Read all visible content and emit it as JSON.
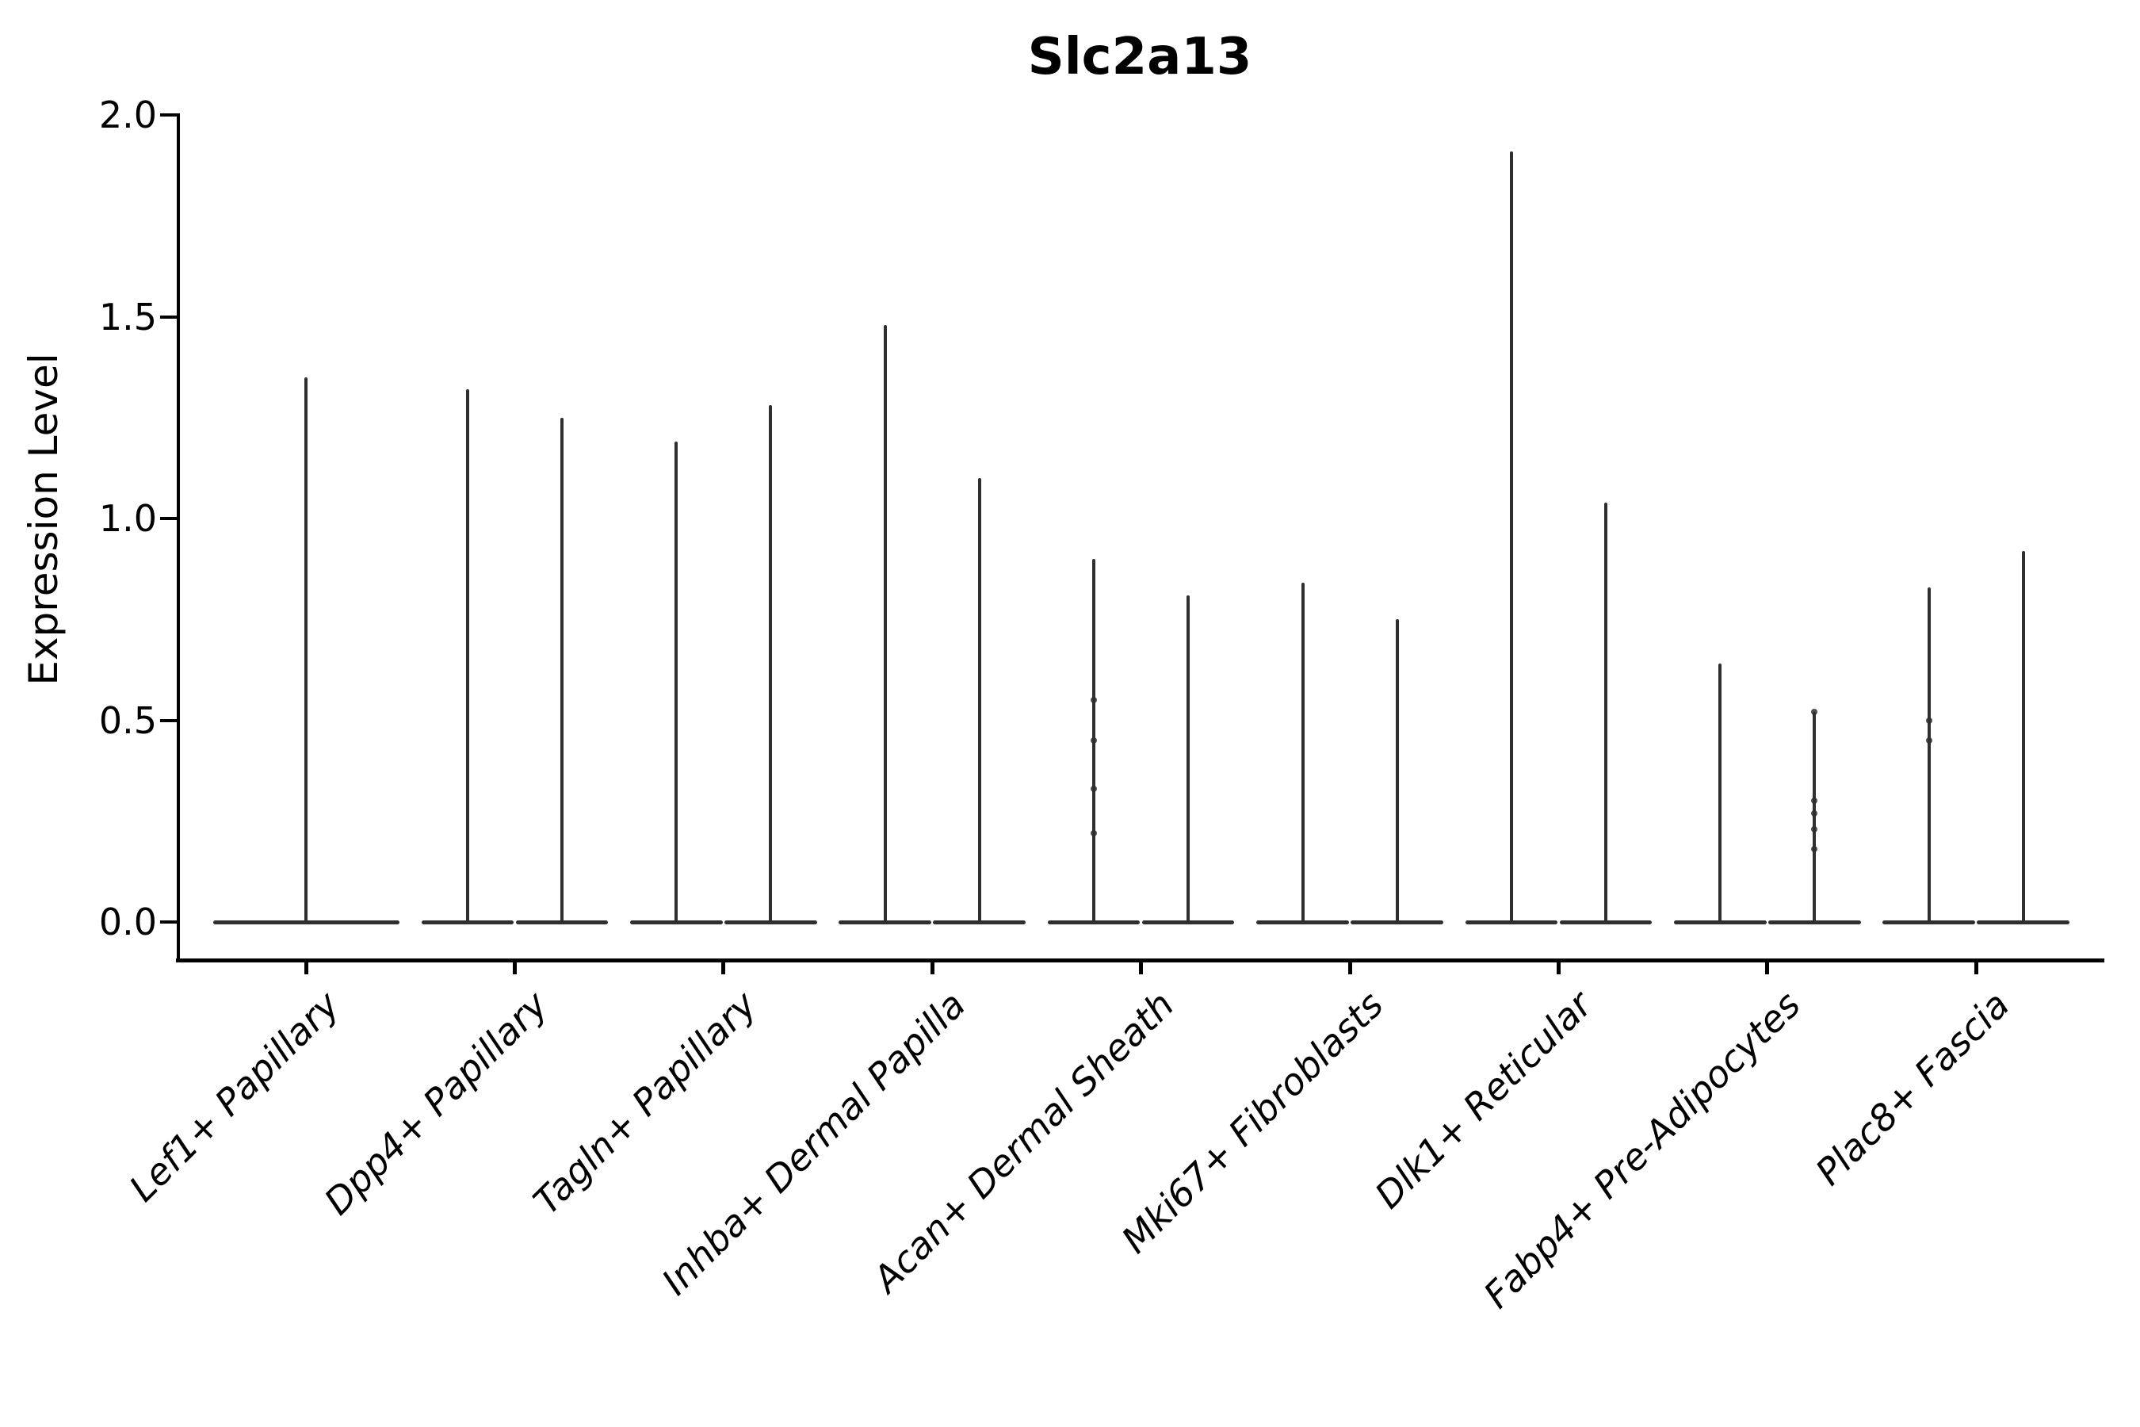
{
  "chart_data": {
    "type": "violin",
    "title": "Slc2a13",
    "ylabel": "Expression Level",
    "xlabel": "",
    "yticks": [
      0.0,
      0.5,
      1.0,
      1.5,
      2.0
    ],
    "ytick_labels": [
      "0.0",
      "0.5",
      "1.0",
      "1.5",
      "2.0"
    ],
    "ylim": [
      -0.09,
      2.0
    ],
    "grid": false,
    "legend": null,
    "categories": [
      "Lef1+ Papillary",
      "Dpp4+ Papillary",
      "Tagln+ Papillary",
      "Inhba+ Dermal Papilla",
      "Acan+ Dermal Sheath",
      "Mki67+ Fibroblasts",
      "Dlk1+ Reticular",
      "Fabp4+ Pre-Adipocytes",
      "Plac8+ Fascia"
    ],
    "series": [
      {
        "category": "Lef1+ Papillary",
        "violins": [
          {
            "max": 1.35,
            "points": []
          }
        ]
      },
      {
        "category": "Dpp4+ Papillary",
        "violins": [
          {
            "max": 1.32,
            "points": []
          },
          {
            "max": 1.25,
            "points": []
          }
        ]
      },
      {
        "category": "Tagln+ Papillary",
        "violins": [
          {
            "max": 1.19,
            "points": []
          },
          {
            "max": 1.28,
            "points": []
          }
        ]
      },
      {
        "category": "Inhba+ Dermal Papilla",
        "violins": [
          {
            "max": 1.48,
            "points": []
          },
          {
            "max": 1.1,
            "points": []
          }
        ]
      },
      {
        "category": "Acan+ Dermal Sheath",
        "violins": [
          {
            "max": 0.9,
            "points": [
              0.55,
              0.45,
              0.33,
              0.22
            ]
          },
          {
            "max": 0.81,
            "points": []
          }
        ]
      },
      {
        "category": "Mki67+ Fibroblasts",
        "violins": [
          {
            "max": 0.84,
            "points": []
          },
          {
            "max": 0.75,
            "points": []
          }
        ]
      },
      {
        "category": "Dlk1+ Reticular",
        "violins": [
          {
            "max": 1.91,
            "points": []
          },
          {
            "max": 1.04,
            "points": []
          }
        ]
      },
      {
        "category": "Fabp4+ Pre-Adipocytes",
        "violins": [
          {
            "max": 0.64,
            "points": []
          },
          {
            "max": 0.52,
            "points": [
              0.52,
              0.3,
              0.27,
              0.23,
              0.18
            ]
          }
        ]
      },
      {
        "category": "Plac8+ Fascia",
        "violins": [
          {
            "max": 0.83,
            "points": [
              0.5,
              0.45
            ]
          },
          {
            "max": 0.92,
            "points": []
          }
        ]
      }
    ],
    "colors": {
      "violin": "#2f2f2f",
      "axis": "#000000",
      "text": "#000000",
      "background": "#ffffff"
    }
  }
}
